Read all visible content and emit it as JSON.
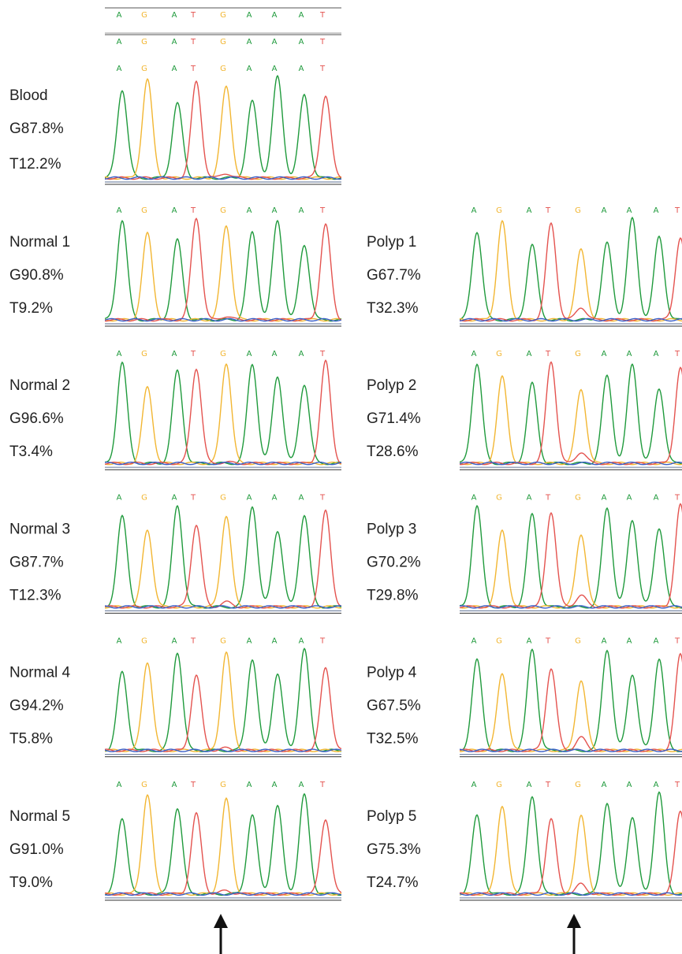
{
  "left": [
    {
      "name": "Blood",
      "g": "G87.8%",
      "t": "T12.2%",
      "bases": [
        [
          "A",
          "G",
          "A",
          "T",
          "G",
          "A",
          "A",
          "A",
          "T"
        ],
        [
          "A",
          "G",
          "A",
          "T",
          "G",
          "A",
          "A",
          "A",
          "T"
        ],
        [
          "A",
          "G",
          "A",
          "T",
          "G",
          "A",
          "A",
          "A",
          "T"
        ]
      ]
    },
    {
      "name": "Normal 1",
      "g": "G90.8%",
      "t": "T9.2%",
      "bases": [
        [
          "A",
          "G",
          "A",
          "T",
          "G",
          "A",
          "A",
          "A",
          "T"
        ]
      ]
    },
    {
      "name": "Normal 2",
      "g": "G96.6%",
      "t": "T3.4%",
      "bases": [
        [
          "A",
          "G",
          "A",
          "T",
          "G",
          "A",
          "A",
          "A",
          "T"
        ]
      ]
    },
    {
      "name": "Normal 3",
      "g": "G87.7%",
      "t": "T12.3%",
      "bases": [
        [
          "A",
          "G",
          "A",
          "T",
          "G",
          "A",
          "A",
          "A",
          "T"
        ]
      ]
    },
    {
      "name": "Normal 4",
      "g": "G94.2%",
      "t": "T5.8%",
      "bases": [
        [
          "A",
          "G",
          "A",
          "T",
          "G",
          "A",
          "A",
          "A",
          "T"
        ]
      ]
    },
    {
      "name": "Normal 5",
      "g": "G91.0%",
      "t": "T9.0%",
      "bases": [
        [
          "A",
          "G",
          "A",
          "T",
          "G",
          "A",
          "A",
          "A",
          "T"
        ]
      ]
    }
  ],
  "right": [
    {
      "name": "Polyp 1",
      "g": "G67.7%",
      "t": "T32.3%",
      "bases": [
        [
          "A",
          "G",
          "A",
          "T",
          "G",
          "A",
          "A",
          "A",
          "T"
        ]
      ]
    },
    {
      "name": "Polyp 2",
      "g": "G71.4%",
      "t": "T28.6%",
      "bases": [
        [
          "A",
          "G",
          "A",
          "T",
          "G",
          "A",
          "A",
          "A",
          "T"
        ]
      ]
    },
    {
      "name": "Polyp 3",
      "g": "G70.2%",
      "t": "T29.8%",
      "bases": [
        [
          "A",
          "G",
          "A",
          "T",
          "G",
          "A",
          "A",
          "A",
          "T"
        ]
      ]
    },
    {
      "name": "Polyp 4",
      "g": "G67.5%",
      "t": "T32.5%",
      "bases": [
        [
          "A",
          "G",
          "A",
          "T",
          "G",
          "A",
          "A",
          "A",
          "T"
        ]
      ]
    },
    {
      "name": "Polyp 5",
      "g": "G75.3%",
      "t": "T24.7%",
      "bases": [
        [
          "A",
          "G",
          "A",
          "T",
          "G",
          "A",
          "A",
          "A",
          "T"
        ]
      ]
    }
  ]
}
